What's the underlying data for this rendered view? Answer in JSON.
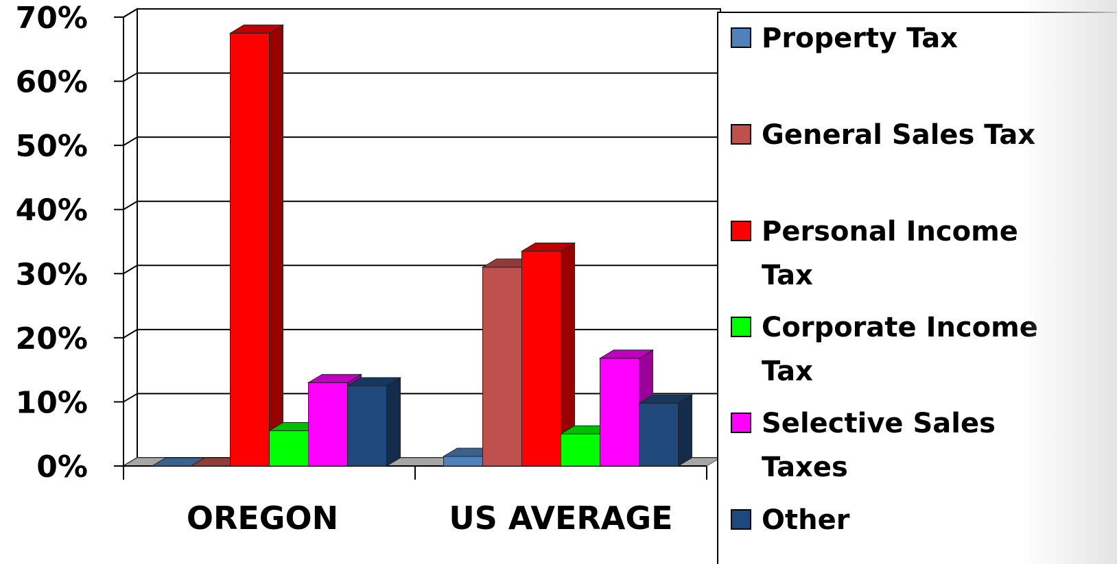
{
  "chart_data": {
    "type": "bar",
    "categories": [
      "OREGON",
      "US AVERAGE"
    ],
    "series": [
      {
        "name": "Property Tax",
        "values": [
          0,
          1.5
        ],
        "color": "#4F81BD"
      },
      {
        "name": "General Sales Tax",
        "values": [
          0,
          31
        ],
        "color": "#C0504D"
      },
      {
        "name": "Personal Income Tax",
        "values": [
          67.5,
          33.5
        ],
        "color": "#FF0000"
      },
      {
        "name": "Corporate Income Tax",
        "values": [
          5.5,
          5
        ],
        "color": "#00FF00"
      },
      {
        "name": "Selective Sales Taxes",
        "values": [
          13,
          16.8
        ],
        "color": "#FF00FF"
      },
      {
        "name": "Other",
        "values": [
          12.5,
          9.8
        ],
        "color": "#1F497D"
      }
    ],
    "ylim": [
      0,
      70
    ],
    "y_ticks": [
      "0%",
      "10%",
      "20%",
      "30%",
      "40%",
      "50%",
      "60%",
      "70%"
    ],
    "grid": true,
    "legend_position": "right",
    "style": "3d-bar"
  }
}
